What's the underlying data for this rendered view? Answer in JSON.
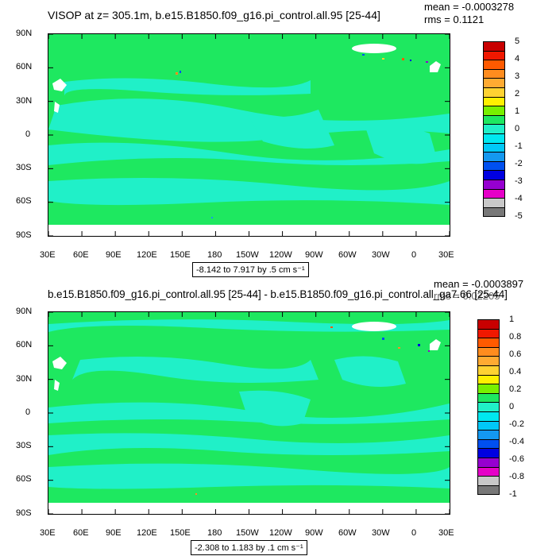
{
  "panels": [
    {
      "title": "VISOP at z= 305.1m, b.e15.B1850.f09_g16.pi_control.all.95 [25-44]",
      "mean_label": "mean = -0.0003278",
      "rms_label": "rms = 0.1121",
      "range_label": "-8.142 to 7.917 by .5 cm s⁻¹",
      "colorbar_labels": [
        "5",
        "4",
        "3",
        "2",
        "1",
        "0",
        "-1",
        "-2",
        "-3",
        "-4",
        "-5"
      ]
    },
    {
      "title": "b.e15.B1850.f09_g16.pi_control.all.95 [25-44] - b.e15.B1850.f09_g16.pi_control.all_ga7.66 [25-44]",
      "mean_label": "mean = -0.0003897",
      "rms_label": "rms = 0.02205",
      "range_label": "-2.308 to 1.183 by .1 cm s⁻¹",
      "colorbar_labels": [
        "1",
        "0.8",
        "0.6",
        "0.4",
        "0.2",
        "0",
        "-0.2",
        "-0.4",
        "-0.6",
        "-0.8",
        "-1"
      ]
    }
  ],
  "axes": {
    "lat_labels": [
      "90N",
      "60N",
      "30N",
      "0",
      "30S",
      "60S",
      "90S"
    ],
    "lon_labels": [
      "30E",
      "60E",
      "90E",
      "120E",
      "150E",
      "180",
      "150W",
      "120W",
      "90W",
      "60W",
      "30W",
      "0",
      "30E"
    ]
  },
  "colors": {
    "land": "#ffffff",
    "ocean_main": "#1ee860",
    "ocean_band": "#20f0c8",
    "colorbar": [
      "#c80000",
      "#f01800",
      "#ff5a00",
      "#ff8c1e",
      "#ffaa32",
      "#ffd232",
      "#fff000",
      "#78f000",
      "#1ee860",
      "#20f0c8",
      "#00e8f0",
      "#00c8f8",
      "#1498f0",
      "#0050f0",
      "#0000e0",
      "#9600d0",
      "#e600c8",
      "#c8c8c8",
      "#787878"
    ]
  }
}
